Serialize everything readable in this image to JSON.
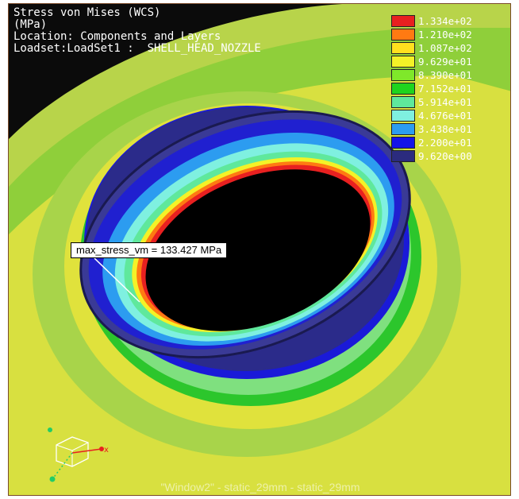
{
  "header": {
    "line1": "Stress von Mises (WCS)",
    "line2": "(MPa)",
    "line3": "Location: Components and Layers",
    "line4": "Loadset:LoadSet1 :  SHELL_HEAD_NOZZLE"
  },
  "legend": [
    {
      "value": "1.334e+02",
      "color": "#e82020"
    },
    {
      "value": "1.210e+02",
      "color": "#ff7a12"
    },
    {
      "value": "1.087e+02",
      "color": "#ffe01e"
    },
    {
      "value": "9.629e+01",
      "color": "#f4f227"
    },
    {
      "value": "8.390e+01",
      "color": "#7fe82a"
    },
    {
      "value": "7.152e+01",
      "color": "#1ed41e"
    },
    {
      "value": "5.914e+01",
      "color": "#5fe89c"
    },
    {
      "value": "4.676e+01",
      "color": "#7ff0e0"
    },
    {
      "value": "3.438e+01",
      "color": "#2c9cf0"
    },
    {
      "value": "2.200e+01",
      "color": "#1414e8"
    },
    {
      "value": "9.620e+00",
      "color": "#2b2b7e"
    }
  ],
  "annotation": {
    "text": "max_stress_vm = 133.427 MPa"
  },
  "footer": {
    "text": "\"Window2\" - static_29mm - static_29mm"
  },
  "triad": {
    "x_axis_label": "x"
  }
}
